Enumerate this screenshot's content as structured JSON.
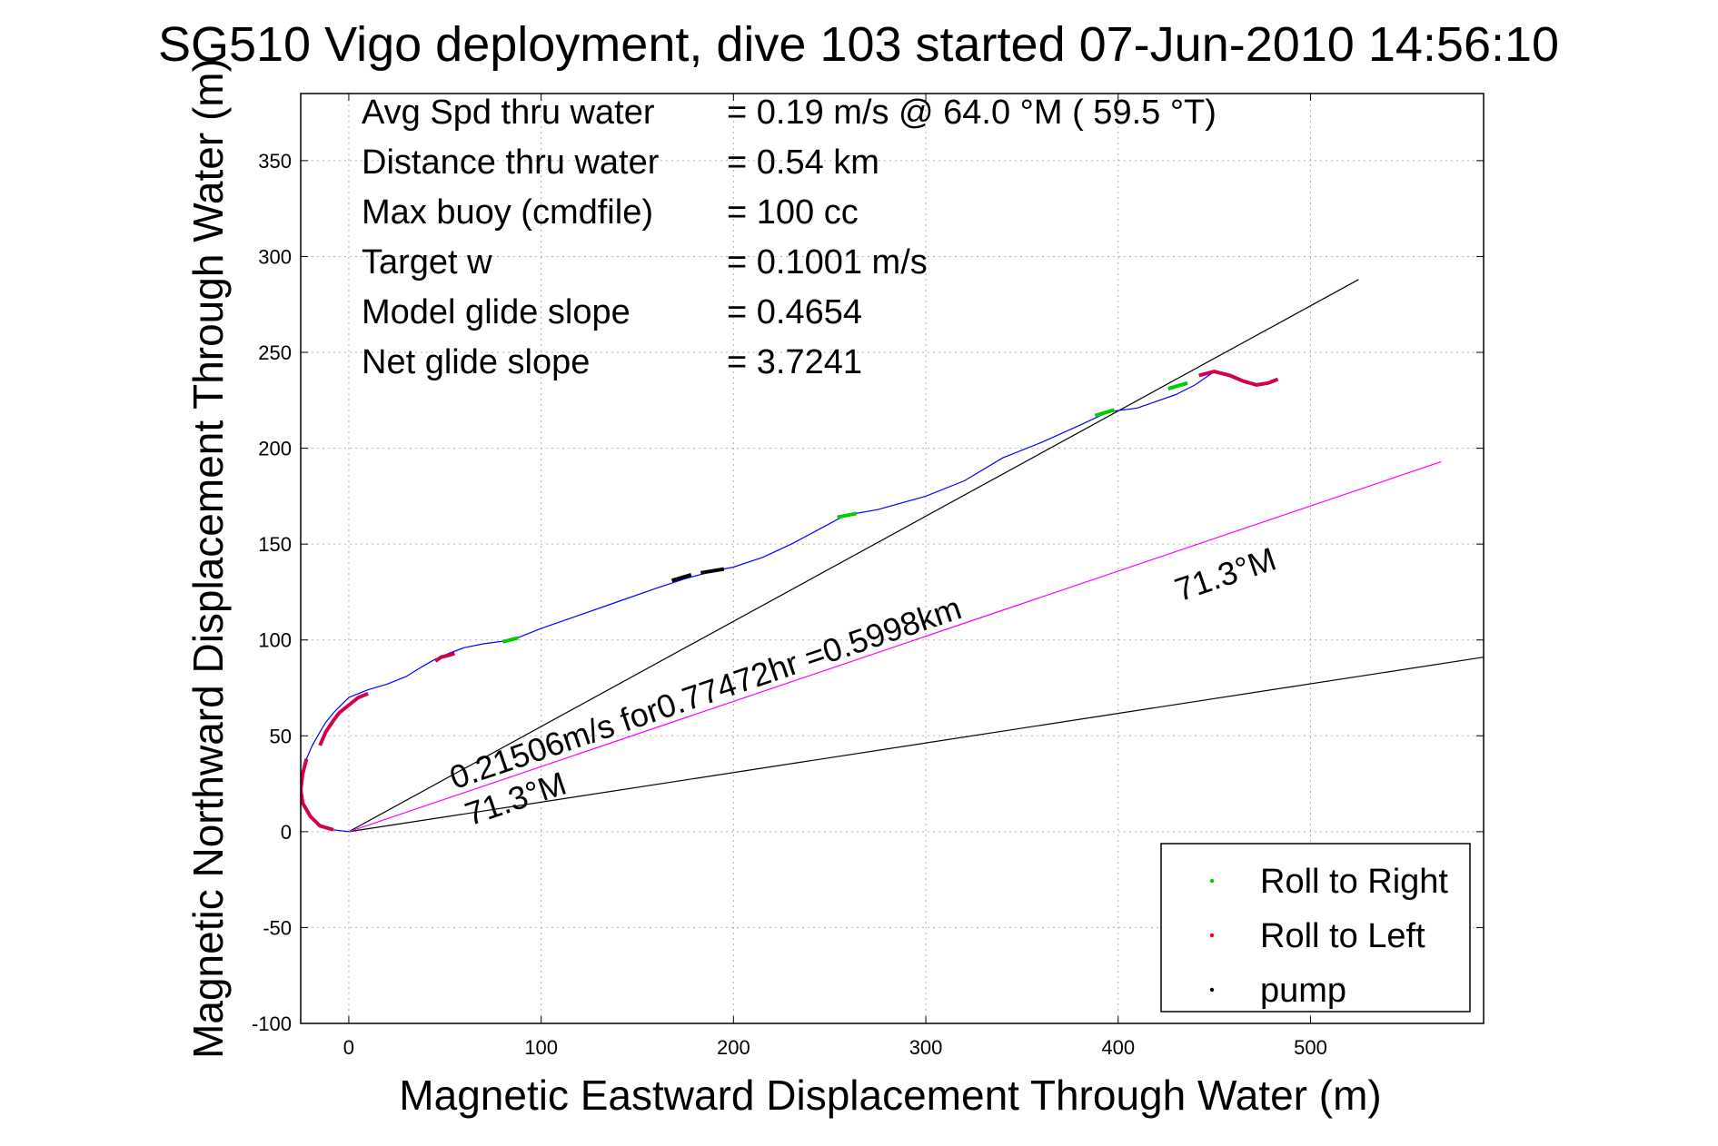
{
  "chart_data": {
    "type": "line",
    "title": "SG510 Vigo deployment, dive 103 started 07-Jun-2010 14:56:10",
    "xlabel": "Magnetic Eastward Displacement Through Water (m)",
    "ylabel": "Magnetic Northward Displacement Through Water (m)",
    "xlim": [
      -25,
      590
    ],
    "ylim": [
      -100,
      385
    ],
    "xticks": [
      0,
      100,
      200,
      300,
      400,
      500
    ],
    "yticks": [
      -100,
      -50,
      0,
      50,
      100,
      150,
      200,
      250,
      300,
      350
    ],
    "grid": true,
    "legend_position": "bottom-right",
    "stats": [
      {
        "label": "Avg Spd thru water",
        "value": "=  0.19 m/s @  64.0 °M ( 59.5 °T)"
      },
      {
        "label": "Distance thru water",
        "value": "=  0.54 km"
      },
      {
        "label": "Max buoy (cmdfile)",
        "value": "= 100 cc"
      },
      {
        "label": "Target w",
        "value": "= 0.1001 m/s"
      },
      {
        "label": "Model glide slope",
        "value": "= 0.4654"
      },
      {
        "label": "Net glide slope",
        "value": "= 3.7241"
      }
    ],
    "track": {
      "color": "#0000ff",
      "x": [
        0,
        -8,
        -15,
        -20,
        -24,
        -25,
        -24,
        -22,
        -19,
        -15,
        -12,
        -8,
        -5,
        0,
        5,
        10,
        20,
        30,
        38,
        45,
        52,
        60,
        70,
        85,
        100,
        120,
        140,
        160,
        175,
        190,
        200,
        215,
        230,
        245,
        258,
        275,
        300,
        320,
        340,
        360,
        380,
        395,
        410,
        430,
        440,
        450
      ],
      "y": [
        0,
        1,
        3,
        8,
        15,
        22,
        30,
        38,
        45,
        52,
        57,
        62,
        65,
        70,
        72,
        74,
        77,
        81,
        86,
        90,
        93,
        96,
        98,
        100,
        106,
        113,
        120,
        127,
        132,
        136,
        138,
        143,
        150,
        158,
        165,
        168,
        175,
        183,
        195,
        203,
        212,
        219,
        221,
        228,
        233,
        240
      ]
    },
    "glide_line": {
      "color": "#000000",
      "x": [
        0,
        525
      ],
      "y": [
        0,
        288
      ]
    },
    "heading_line": {
      "color": "#000000",
      "x": [
        0,
        590
      ],
      "y": [
        0,
        91
      ]
    },
    "displacement_line": {
      "color": "#ff00ff",
      "x": [
        0,
        568
      ],
      "y": [
        0,
        193
      ]
    },
    "segments": [
      {
        "kind": "roll_left",
        "color": "#d4004a",
        "x": [
          -8,
          -15,
          -20,
          -24,
          -25,
          -24,
          -22
        ],
        "y": [
          1,
          3,
          8,
          15,
          22,
          30,
          38
        ]
      },
      {
        "kind": "roll_left",
        "color": "#d4004a",
        "x": [
          -15,
          -12,
          -8,
          -5,
          0,
          5,
          10
        ],
        "y": [
          45,
          52,
          58,
          62,
          66,
          70,
          72
        ]
      },
      {
        "kind": "roll_left",
        "color": "#d4004a",
        "x": [
          45,
          48,
          52,
          55
        ],
        "y": [
          89,
          91,
          92,
          93
        ]
      },
      {
        "kind": "roll_right",
        "color": "#00cc00",
        "x": [
          80,
          88
        ],
        "y": [
          99,
          101
        ]
      },
      {
        "kind": "pump",
        "color": "#000000",
        "x": [
          168,
          178
        ],
        "y": [
          131,
          134
        ]
      },
      {
        "kind": "pump",
        "color": "#000000",
        "x": [
          183,
          195
        ],
        "y": [
          135,
          137
        ]
      },
      {
        "kind": "roll_right",
        "color": "#00cc00",
        "x": [
          254,
          264
        ],
        "y": [
          164,
          166
        ]
      },
      {
        "kind": "roll_right",
        "color": "#00cc00",
        "x": [
          388,
          398
        ],
        "y": [
          217,
          220
        ]
      },
      {
        "kind": "roll_right",
        "color": "#00cc00",
        "x": [
          426,
          436
        ],
        "y": [
          231,
          234
        ]
      },
      {
        "kind": "roll_left",
        "color": "#d4004a",
        "x": [
          442,
          450,
          458,
          465,
          472,
          478,
          483
        ],
        "y": [
          238,
          240,
          238,
          235,
          233,
          234,
          236
        ]
      }
    ],
    "annotations": [
      {
        "text": "0.21506m/s for0.77472hr =0.5998km",
        "x": 55,
        "y": 22,
        "angle": -18.7
      },
      {
        "text": "71.3°M",
        "x": 63,
        "y": 3,
        "angle": -18.7
      },
      {
        "text": "71.3°M",
        "x": 432,
        "y": 120,
        "angle": -18.7
      }
    ],
    "legend": [
      {
        "label": "Roll to Right",
        "color": "#00cc00"
      },
      {
        "label": "Roll to Left",
        "color": "#ff0000"
      },
      {
        "label": "pump",
        "color": "#000000"
      }
    ]
  }
}
